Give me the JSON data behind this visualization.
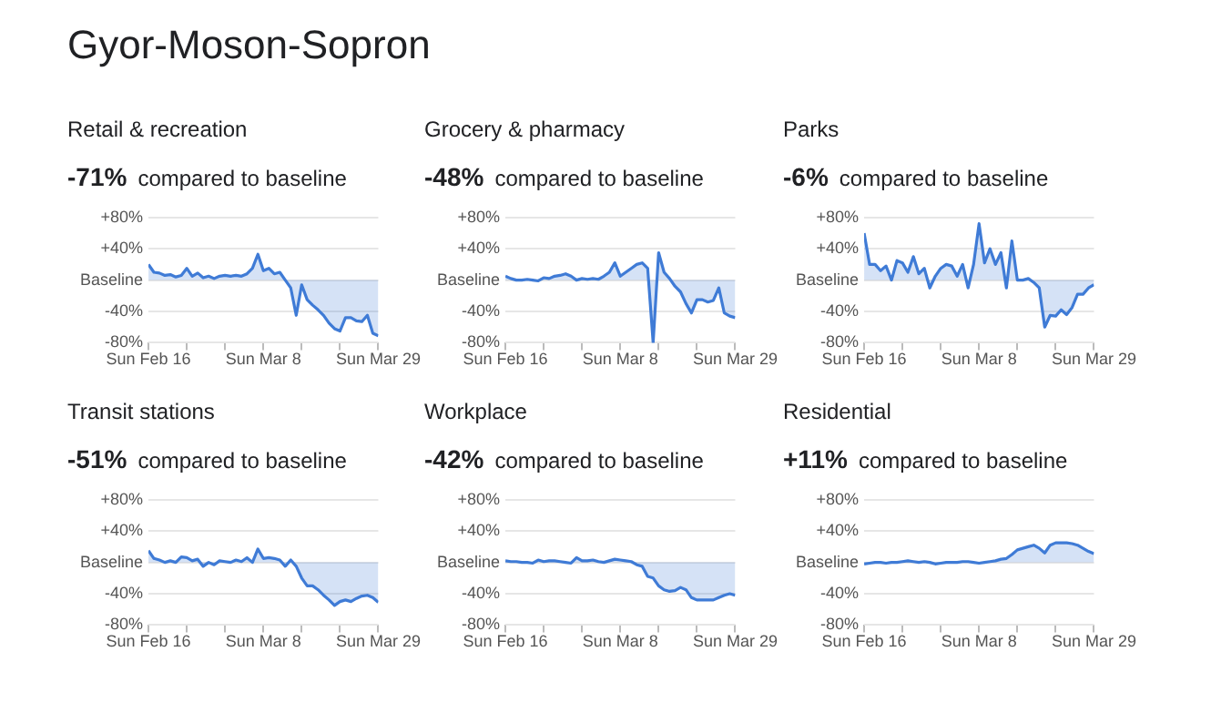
{
  "chart_data": [
    {
      "type": "other",
      "title": "Gyor-Moson-Sopron"
    },
    {
      "type": "area",
      "title": "Retail & recreation",
      "subtitle": "-71% compared to baseline",
      "x": [
        "--02-16",
        "--02-17",
        "--02-18",
        "--02-19",
        "--02-20",
        "--02-21",
        "--02-22",
        "--02-23",
        "--02-24",
        "--02-25",
        "--02-26",
        "--02-27",
        "--02-28",
        "--02-29",
        "--03-01",
        "--03-02",
        "--03-03",
        "--03-04",
        "--03-05",
        "--03-06",
        "--03-07",
        "--03-08",
        "--03-09",
        "--03-10",
        "--03-11",
        "--03-12",
        "--03-13",
        "--03-14",
        "--03-15",
        "--03-16",
        "--03-17",
        "--03-18",
        "--03-19",
        "--03-20",
        "--03-21",
        "--03-22",
        "--03-23",
        "--03-24",
        "--03-25",
        "--03-26",
        "--03-27",
        "--03-28",
        "--03-29"
      ],
      "xlim": [
        "--02-16",
        "--03-29"
      ],
      "xticks": [
        {
          "value": "--02-16",
          "label": "Sun Feb 16"
        },
        {
          "value": "--02-23",
          "label": null
        },
        {
          "value": "--03-01",
          "label": null
        },
        {
          "value": "--03-08",
          "label": "Sun Mar 8"
        },
        {
          "value": "--03-15",
          "label": null
        },
        {
          "value": "--03-22",
          "label": null
        },
        {
          "value": "--03-29",
          "label": "Sun Mar 29"
        }
      ],
      "ylim": [
        -80,
        80
      ],
      "yticks": [
        {
          "value": 80,
          "label": "+80%"
        },
        {
          "value": 40,
          "label": "+40%"
        },
        {
          "value": 0,
          "label": "Baseline"
        },
        {
          "value": -40,
          "label": "-40%"
        },
        {
          "value": -80,
          "label": "-80%"
        }
      ],
      "grid": "y",
      "series": [
        {
          "color": "#3f7bd6",
          "values": [
            20,
            10,
            9,
            6,
            7,
            4,
            6,
            15,
            5,
            9,
            3,
            5,
            2,
            5,
            6,
            5,
            6,
            5,
            8,
            15,
            33,
            12,
            15,
            8,
            10,
            0,
            -10,
            -45,
            -6,
            -25,
            -32,
            -38,
            -45,
            -55,
            -62,
            -65,
            -48,
            -48,
            -52,
            -53,
            -45,
            -68,
            -71
          ]
        }
      ]
    },
    {
      "type": "area",
      "title": "Grocery & pharmacy",
      "subtitle": "-48% compared to baseline",
      "x": [
        "--02-16",
        "--02-17",
        "--02-18",
        "--02-19",
        "--02-20",
        "--02-21",
        "--02-22",
        "--02-23",
        "--02-24",
        "--02-25",
        "--02-26",
        "--02-27",
        "--02-28",
        "--02-29",
        "--03-01",
        "--03-02",
        "--03-03",
        "--03-04",
        "--03-05",
        "--03-06",
        "--03-07",
        "--03-08",
        "--03-09",
        "--03-10",
        "--03-11",
        "--03-12",
        "--03-13",
        "--03-14",
        "--03-15",
        "--03-16",
        "--03-17",
        "--03-18",
        "--03-19",
        "--03-20",
        "--03-21",
        "--03-22",
        "--03-23",
        "--03-24",
        "--03-25",
        "--03-26",
        "--03-27",
        "--03-28",
        "--03-29"
      ],
      "xlim": [
        "--02-16",
        "--03-29"
      ],
      "xticks": [
        {
          "value": "--02-16",
          "label": "Sun Feb 16"
        },
        {
          "value": "--02-23",
          "label": null
        },
        {
          "value": "--03-01",
          "label": null
        },
        {
          "value": "--03-08",
          "label": "Sun Mar 8"
        },
        {
          "value": "--03-15",
          "label": null
        },
        {
          "value": "--03-22",
          "label": null
        },
        {
          "value": "--03-29",
          "label": "Sun Mar 29"
        }
      ],
      "ylim": [
        -80,
        80
      ],
      "yticks": [
        {
          "value": 80,
          "label": "+80%"
        },
        {
          "value": 40,
          "label": "+40%"
        },
        {
          "value": 0,
          "label": "Baseline"
        },
        {
          "value": -40,
          "label": "-40%"
        },
        {
          "value": -80,
          "label": "-80%"
        }
      ],
      "grid": "y",
      "series": [
        {
          "color": "#3f7bd6",
          "values": [
            5,
            2,
            0,
            0,
            1,
            0,
            -1,
            3,
            2,
            5,
            6,
            8,
            5,
            0,
            2,
            1,
            2,
            1,
            5,
            10,
            22,
            5,
            10,
            15,
            20,
            22,
            15,
            -80,
            35,
            10,
            2,
            -8,
            -15,
            -30,
            -42,
            -25,
            -25,
            -28,
            -26,
            -10,
            -42,
            -46,
            -48
          ]
        }
      ]
    },
    {
      "type": "area",
      "title": "Parks",
      "subtitle": "-6% compared to baseline",
      "x": [
        "--02-16",
        "--02-17",
        "--02-18",
        "--02-19",
        "--02-20",
        "--02-21",
        "--02-22",
        "--02-23",
        "--02-24",
        "--02-25",
        "--02-26",
        "--02-27",
        "--02-28",
        "--02-29",
        "--03-01",
        "--03-02",
        "--03-03",
        "--03-04",
        "--03-05",
        "--03-06",
        "--03-07",
        "--03-08",
        "--03-09",
        "--03-10",
        "--03-11",
        "--03-12",
        "--03-13",
        "--03-14",
        "--03-15",
        "--03-16",
        "--03-17",
        "--03-18",
        "--03-19",
        "--03-20",
        "--03-21",
        "--03-22",
        "--03-23",
        "--03-24",
        "--03-25",
        "--03-26",
        "--03-27",
        "--03-28",
        "--03-29"
      ],
      "xlim": [
        "--02-16",
        "--03-29"
      ],
      "xticks": [
        {
          "value": "--02-16",
          "label": "Sun Feb 16"
        },
        {
          "value": "--02-23",
          "label": null
        },
        {
          "value": "--03-01",
          "label": null
        },
        {
          "value": "--03-08",
          "label": "Sun Mar 8"
        },
        {
          "value": "--03-15",
          "label": null
        },
        {
          "value": "--03-22",
          "label": null
        },
        {
          "value": "--03-29",
          "label": "Sun Mar 29"
        }
      ],
      "ylim": [
        -80,
        80
      ],
      "yticks": [
        {
          "value": 80,
          "label": "+80%"
        },
        {
          "value": 40,
          "label": "+40%"
        },
        {
          "value": 0,
          "label": "Baseline"
        },
        {
          "value": -40,
          "label": "-40%"
        },
        {
          "value": -80,
          "label": "-80%"
        }
      ],
      "grid": "y",
      "series": [
        {
          "color": "#3f7bd6",
          "values": [
            60,
            20,
            20,
            12,
            18,
            0,
            25,
            22,
            10,
            30,
            8,
            15,
            -10,
            5,
            15,
            20,
            18,
            5,
            20,
            -10,
            20,
            72,
            22,
            40,
            20,
            35,
            -10,
            50,
            0,
            0,
            2,
            -3,
            -10,
            -60,
            -45,
            -46,
            -38,
            -44,
            -35,
            -18,
            -18,
            -10,
            -6
          ]
        }
      ]
    },
    {
      "type": "area",
      "title": "Transit stations",
      "subtitle": "-51% compared to baseline",
      "x": [
        "--02-16",
        "--02-17",
        "--02-18",
        "--02-19",
        "--02-20",
        "--02-21",
        "--02-22",
        "--02-23",
        "--02-24",
        "--02-25",
        "--02-26",
        "--02-27",
        "--02-28",
        "--02-29",
        "--03-01",
        "--03-02",
        "--03-03",
        "--03-04",
        "--03-05",
        "--03-06",
        "--03-07",
        "--03-08",
        "--03-09",
        "--03-10",
        "--03-11",
        "--03-12",
        "--03-13",
        "--03-14",
        "--03-15",
        "--03-16",
        "--03-17",
        "--03-18",
        "--03-19",
        "--03-20",
        "--03-21",
        "--03-22",
        "--03-23",
        "--03-24",
        "--03-25",
        "--03-26",
        "--03-27",
        "--03-28",
        "--03-29"
      ],
      "xlim": [
        "--02-16",
        "--03-29"
      ],
      "xticks": [
        {
          "value": "--02-16",
          "label": "Sun Feb 16"
        },
        {
          "value": "--02-23",
          "label": null
        },
        {
          "value": "--03-01",
          "label": null
        },
        {
          "value": "--03-08",
          "label": "Sun Mar 8"
        },
        {
          "value": "--03-15",
          "label": null
        },
        {
          "value": "--03-22",
          "label": null
        },
        {
          "value": "--03-29",
          "label": "Sun Mar 29"
        }
      ],
      "ylim": [
        -80,
        80
      ],
      "yticks": [
        {
          "value": 80,
          "label": "+80%"
        },
        {
          "value": 40,
          "label": "+40%"
        },
        {
          "value": 0,
          "label": "Baseline"
        },
        {
          "value": -40,
          "label": "-40%"
        },
        {
          "value": -80,
          "label": "-80%"
        }
      ],
      "grid": "y",
      "series": [
        {
          "color": "#3f7bd6",
          "values": [
            15,
            5,
            3,
            0,
            2,
            0,
            7,
            6,
            2,
            4,
            -5,
            0,
            -3,
            2,
            1,
            0,
            3,
            1,
            6,
            0,
            17,
            5,
            6,
            5,
            3,
            -5,
            3,
            -5,
            -20,
            -30,
            -30,
            -35,
            -42,
            -48,
            -55,
            -50,
            -48,
            -50,
            -46,
            -43,
            -42,
            -45,
            -51
          ]
        }
      ]
    },
    {
      "type": "area",
      "title": "Workplace",
      "subtitle": "-42% compared to baseline",
      "x": [
        "--02-16",
        "--02-17",
        "--02-18",
        "--02-19",
        "--02-20",
        "--02-21",
        "--02-22",
        "--02-23",
        "--02-24",
        "--02-25",
        "--02-26",
        "--02-27",
        "--02-28",
        "--02-29",
        "--03-01",
        "--03-02",
        "--03-03",
        "--03-04",
        "--03-05",
        "--03-06",
        "--03-07",
        "--03-08",
        "--03-09",
        "--03-10",
        "--03-11",
        "--03-12",
        "--03-13",
        "--03-14",
        "--03-15",
        "--03-16",
        "--03-17",
        "--03-18",
        "--03-19",
        "--03-20",
        "--03-21",
        "--03-22",
        "--03-23",
        "--03-24",
        "--03-25",
        "--03-26",
        "--03-27",
        "--03-28",
        "--03-29"
      ],
      "xlim": [
        "--02-16",
        "--03-29"
      ],
      "xticks": [
        {
          "value": "--02-16",
          "label": "Sun Feb 16"
        },
        {
          "value": "--02-23",
          "label": null
        },
        {
          "value": "--03-01",
          "label": null
        },
        {
          "value": "--03-08",
          "label": "Sun Mar 8"
        },
        {
          "value": "--03-15",
          "label": null
        },
        {
          "value": "--03-22",
          "label": null
        },
        {
          "value": "--03-29",
          "label": "Sun Mar 29"
        }
      ],
      "ylim": [
        -80,
        80
      ],
      "yticks": [
        {
          "value": 80,
          "label": "+80%"
        },
        {
          "value": 40,
          "label": "+40%"
        },
        {
          "value": 0,
          "label": "Baseline"
        },
        {
          "value": -40,
          "label": "-40%"
        },
        {
          "value": -80,
          "label": "-80%"
        }
      ],
      "grid": "y",
      "series": [
        {
          "color": "#3f7bd6",
          "values": [
            2,
            1,
            1,
            0,
            0,
            -1,
            3,
            1,
            2,
            2,
            1,
            0,
            -1,
            6,
            2,
            2,
            3,
            1,
            0,
            2,
            4,
            3,
            2,
            1,
            -3,
            -5,
            -18,
            -20,
            -30,
            -35,
            -37,
            -36,
            -32,
            -35,
            -45,
            -48,
            -48,
            -48,
            -48,
            -45,
            -42,
            -40,
            -42
          ]
        }
      ]
    },
    {
      "type": "area",
      "title": "Residential",
      "subtitle": "+11% compared to baseline",
      "x": [
        "--02-16",
        "--02-17",
        "--02-18",
        "--02-19",
        "--02-20",
        "--02-21",
        "--02-22",
        "--02-23",
        "--02-24",
        "--02-25",
        "--02-26",
        "--02-27",
        "--02-28",
        "--02-29",
        "--03-01",
        "--03-02",
        "--03-03",
        "--03-04",
        "--03-05",
        "--03-06",
        "--03-07",
        "--03-08",
        "--03-09",
        "--03-10",
        "--03-11",
        "--03-12",
        "--03-13",
        "--03-14",
        "--03-15",
        "--03-16",
        "--03-17",
        "--03-18",
        "--03-19",
        "--03-20",
        "--03-21",
        "--03-22",
        "--03-23",
        "--03-24",
        "--03-25",
        "--03-26",
        "--03-27",
        "--03-28",
        "--03-29"
      ],
      "xlim": [
        "--02-16",
        "--03-29"
      ],
      "xticks": [
        {
          "value": "--02-16",
          "label": "Sun Feb 16"
        },
        {
          "value": "--02-23",
          "label": null
        },
        {
          "value": "--03-01",
          "label": null
        },
        {
          "value": "--03-08",
          "label": "Sun Mar 8"
        },
        {
          "value": "--03-15",
          "label": null
        },
        {
          "value": "--03-22",
          "label": null
        },
        {
          "value": "--03-29",
          "label": "Sun Mar 29"
        }
      ],
      "ylim": [
        -80,
        80
      ],
      "yticks": [
        {
          "value": 80,
          "label": "+80%"
        },
        {
          "value": 40,
          "label": "+40%"
        },
        {
          "value": 0,
          "label": "Baseline"
        },
        {
          "value": -40,
          "label": "-40%"
        },
        {
          "value": -80,
          "label": "-80%"
        }
      ],
      "grid": "y",
      "series": [
        {
          "color": "#3f7bd6",
          "values": [
            -2,
            -1,
            0,
            0,
            -1,
            0,
            0,
            1,
            2,
            1,
            0,
            1,
            0,
            -2,
            -1,
            0,
            0,
            0,
            1,
            1,
            0,
            -1,
            0,
            1,
            2,
            4,
            5,
            10,
            16,
            18,
            20,
            22,
            18,
            12,
            22,
            25,
            25,
            25,
            24,
            22,
            18,
            14,
            11
          ]
        }
      ]
    }
  ]
}
